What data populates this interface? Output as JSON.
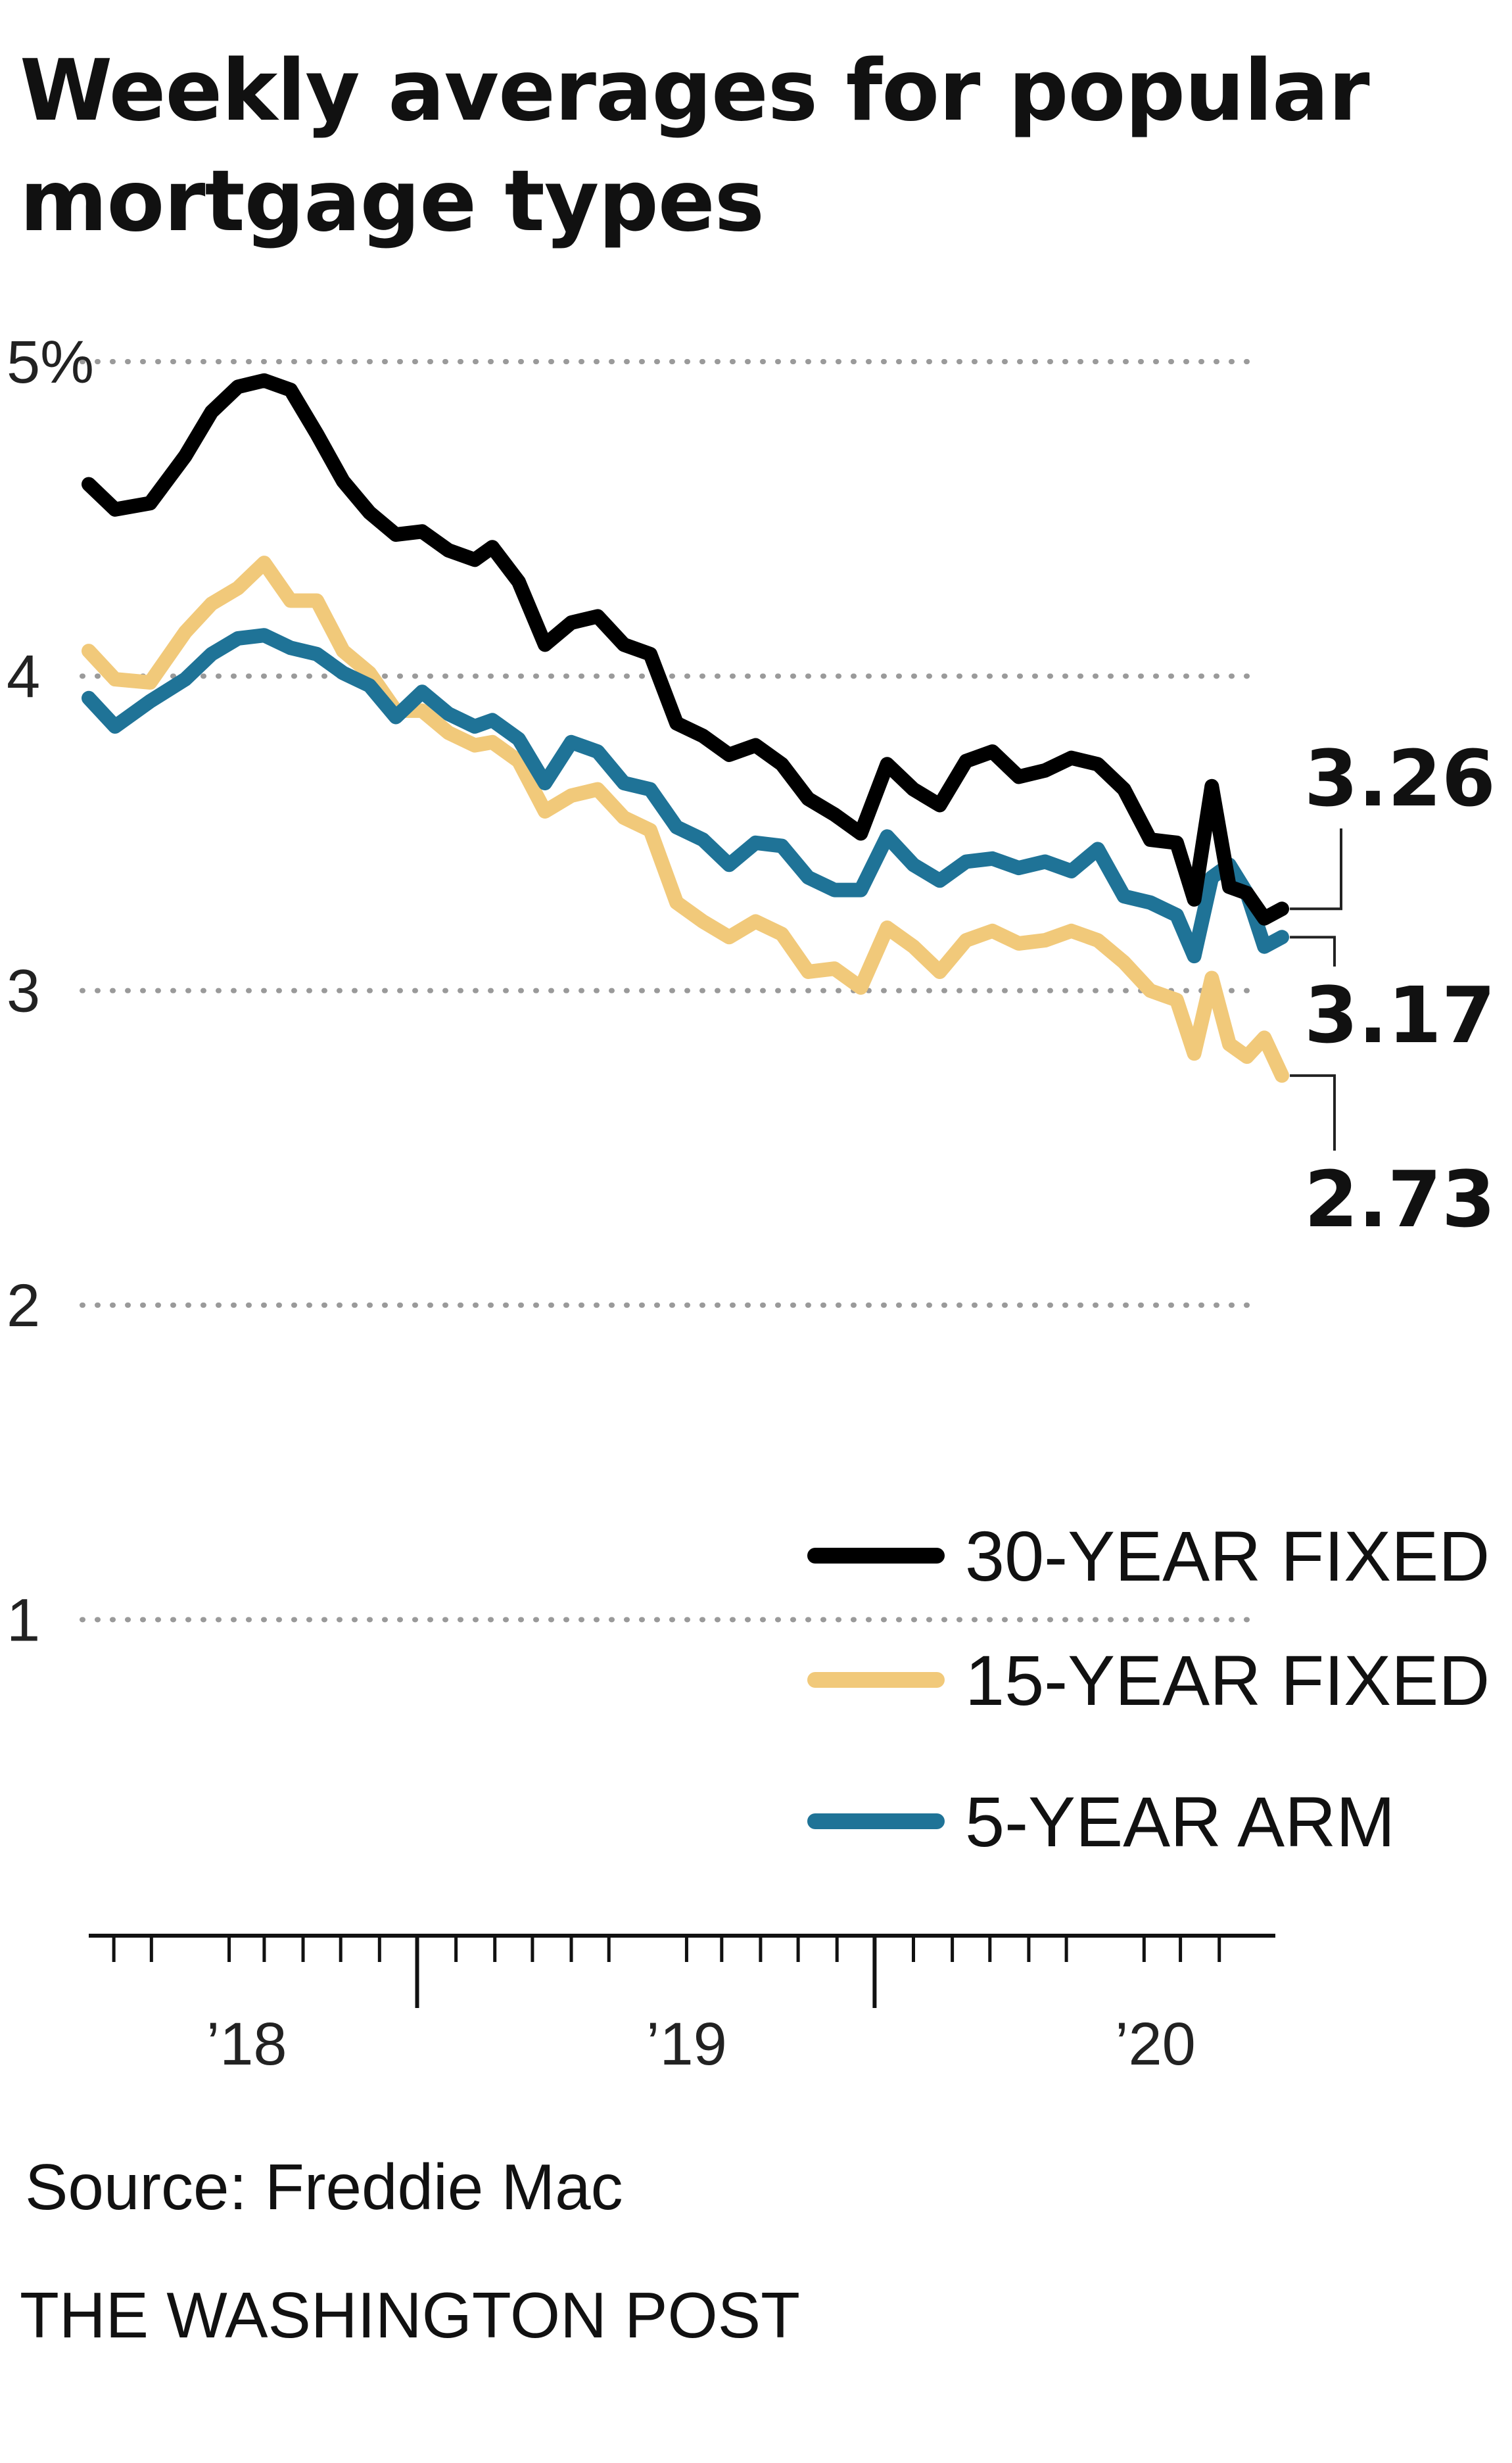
{
  "chart_data": {
    "type": "line",
    "title": "Weekly averages for popular mortgage types",
    "ylabel": "",
    "xlabel": "",
    "ylim": [
      0,
      5
    ],
    "yticks": [
      {
        "value": 5,
        "label": "5%"
      },
      {
        "value": 4,
        "label": "4"
      },
      {
        "value": 3,
        "label": "3"
      },
      {
        "value": 2,
        "label": "2"
      },
      {
        "value": 1,
        "label": "1"
      }
    ],
    "xlim": [
      "2017-10-12",
      "2020-04-30"
    ],
    "xticks": [
      {
        "value": "2018-01-01",
        "label": "’18"
      },
      {
        "value": "2019-01-01",
        "label": "’19"
      },
      {
        "value": "2020-01-01",
        "label": "’20"
      }
    ],
    "grid": true,
    "legend": "bottom-right",
    "series": [
      {
        "name": "30-YEAR FIXED",
        "color": "#000000",
        "end_label": "3.26",
        "points": [
          [
            "2017-10-12",
            4.61
          ],
          [
            "2017-11-02",
            4.53
          ],
          [
            "2017-11-30",
            4.55
          ],
          [
            "2017-12-28",
            4.7
          ],
          [
            "2018-01-18",
            4.84
          ],
          [
            "2018-02-08",
            4.92
          ],
          [
            "2018-03-01",
            4.94
          ],
          [
            "2018-03-22",
            4.91
          ],
          [
            "2018-04-12",
            4.77
          ],
          [
            "2018-05-03",
            4.62
          ],
          [
            "2018-05-24",
            4.52
          ],
          [
            "2018-06-14",
            4.45
          ],
          [
            "2018-07-05",
            4.46
          ],
          [
            "2018-07-26",
            4.4
          ],
          [
            "2018-08-16",
            4.37
          ],
          [
            "2018-08-30",
            4.41
          ],
          [
            "2018-09-20",
            4.3
          ],
          [
            "2018-10-11",
            4.1
          ],
          [
            "2018-11-01",
            4.17
          ],
          [
            "2018-11-22",
            4.19
          ],
          [
            "2018-12-13",
            4.1
          ],
          [
            "2019-01-03",
            4.07
          ],
          [
            "2019-01-24",
            3.85
          ],
          [
            "2019-02-14",
            3.81
          ],
          [
            "2019-03-07",
            3.75
          ],
          [
            "2019-03-28",
            3.78
          ],
          [
            "2019-04-18",
            3.72
          ],
          [
            "2019-05-09",
            3.61
          ],
          [
            "2019-05-30",
            3.56
          ],
          [
            "2019-06-20",
            3.5
          ],
          [
            "2019-07-11",
            3.72
          ],
          [
            "2019-08-01",
            3.64
          ],
          [
            "2019-08-22",
            3.59
          ],
          [
            "2019-09-12",
            3.73
          ],
          [
            "2019-10-03",
            3.76
          ],
          [
            "2019-10-24",
            3.68
          ],
          [
            "2019-11-14",
            3.7
          ],
          [
            "2019-12-05",
            3.74
          ],
          [
            "2019-12-26",
            3.72
          ],
          [
            "2020-01-16",
            3.64
          ],
          [
            "2020-02-06",
            3.48
          ],
          [
            "2020-02-27",
            3.47
          ],
          [
            "2020-03-12",
            3.29
          ],
          [
            "2020-03-26",
            3.65
          ],
          [
            "2020-04-09",
            3.33
          ],
          [
            "2020-04-23",
            3.31
          ],
          [
            "2020-05-07",
            3.23
          ],
          [
            "2020-05-21",
            3.26
          ]
        ]
      },
      {
        "name": "15-YEAR FIXED",
        "color": "#f1c97a",
        "end_label": "2.73",
        "points": [
          [
            "2017-10-12",
            4.08
          ],
          [
            "2017-11-02",
            3.99
          ],
          [
            "2017-11-30",
            3.98
          ],
          [
            "2017-12-28",
            4.14
          ],
          [
            "2018-01-18",
            4.23
          ],
          [
            "2018-02-08",
            4.28
          ],
          [
            "2018-03-01",
            4.36
          ],
          [
            "2018-03-22",
            4.24
          ],
          [
            "2018-04-12",
            4.24
          ],
          [
            "2018-05-03",
            4.08
          ],
          [
            "2018-05-24",
            4.01
          ],
          [
            "2018-06-14",
            3.89
          ],
          [
            "2018-07-05",
            3.89
          ],
          [
            "2018-07-26",
            3.82
          ],
          [
            "2018-08-16",
            3.78
          ],
          [
            "2018-08-30",
            3.79
          ],
          [
            "2018-09-20",
            3.73
          ],
          [
            "2018-10-11",
            3.57
          ],
          [
            "2018-11-01",
            3.62
          ],
          [
            "2018-11-22",
            3.64
          ],
          [
            "2018-12-13",
            3.55
          ],
          [
            "2019-01-03",
            3.51
          ],
          [
            "2019-01-24",
            3.28
          ],
          [
            "2019-02-14",
            3.22
          ],
          [
            "2019-03-07",
            3.17
          ],
          [
            "2019-03-28",
            3.22
          ],
          [
            "2019-04-18",
            3.18
          ],
          [
            "2019-05-09",
            3.06
          ],
          [
            "2019-05-30",
            3.07
          ],
          [
            "2019-06-20",
            3.01
          ],
          [
            "2019-07-11",
            3.2
          ],
          [
            "2019-08-01",
            3.14
          ],
          [
            "2019-08-22",
            3.06
          ],
          [
            "2019-09-12",
            3.16
          ],
          [
            "2019-10-03",
            3.19
          ],
          [
            "2019-10-24",
            3.15
          ],
          [
            "2019-11-14",
            3.16
          ],
          [
            "2019-12-05",
            3.19
          ],
          [
            "2019-12-26",
            3.16
          ],
          [
            "2020-01-16",
            3.09
          ],
          [
            "2020-02-06",
            3.0
          ],
          [
            "2020-02-27",
            2.97
          ],
          [
            "2020-03-12",
            2.8
          ],
          [
            "2020-03-26",
            3.04
          ],
          [
            "2020-04-09",
            2.83
          ],
          [
            "2020-04-23",
            2.79
          ],
          [
            "2020-05-07",
            2.85
          ],
          [
            "2020-05-21",
            2.73
          ]
        ]
      },
      {
        "name": "5-YEAR ARM",
        "color": "#1f7397",
        "end_label": "3.17",
        "points": [
          [
            "2017-10-12",
            3.93
          ],
          [
            "2017-11-02",
            3.84
          ],
          [
            "2017-11-30",
            3.92
          ],
          [
            "2017-12-28",
            3.99
          ],
          [
            "2018-01-18",
            4.07
          ],
          [
            "2018-02-08",
            4.12
          ],
          [
            "2018-03-01",
            4.13
          ],
          [
            "2018-03-22",
            4.09
          ],
          [
            "2018-04-12",
            4.07
          ],
          [
            "2018-05-03",
            4.01
          ],
          [
            "2018-05-24",
            3.97
          ],
          [
            "2018-06-14",
            3.87
          ],
          [
            "2018-07-05",
            3.95
          ],
          [
            "2018-07-26",
            3.88
          ],
          [
            "2018-08-16",
            3.84
          ],
          [
            "2018-08-30",
            3.86
          ],
          [
            "2018-09-20",
            3.8
          ],
          [
            "2018-10-11",
            3.66
          ],
          [
            "2018-11-01",
            3.79
          ],
          [
            "2018-11-22",
            3.76
          ],
          [
            "2018-12-13",
            3.66
          ],
          [
            "2019-01-03",
            3.64
          ],
          [
            "2019-01-24",
            3.52
          ],
          [
            "2019-02-14",
            3.48
          ],
          [
            "2019-03-07",
            3.4
          ],
          [
            "2019-03-28",
            3.47
          ],
          [
            "2019-04-18",
            3.46
          ],
          [
            "2019-05-09",
            3.36
          ],
          [
            "2019-05-30",
            3.32
          ],
          [
            "2019-06-20",
            3.32
          ],
          [
            "2019-07-11",
            3.49
          ],
          [
            "2019-08-01",
            3.4
          ],
          [
            "2019-08-22",
            3.35
          ],
          [
            "2019-09-12",
            3.41
          ],
          [
            "2019-10-03",
            3.42
          ],
          [
            "2019-10-24",
            3.39
          ],
          [
            "2019-11-14",
            3.41
          ],
          [
            "2019-12-05",
            3.38
          ],
          [
            "2019-12-26",
            3.45
          ],
          [
            "2020-01-16",
            3.3
          ],
          [
            "2020-02-06",
            3.28
          ],
          [
            "2020-02-27",
            3.24
          ],
          [
            "2020-03-12",
            3.11
          ],
          [
            "2020-03-26",
            3.36
          ],
          [
            "2020-04-09",
            3.4
          ],
          [
            "2020-04-23",
            3.31
          ],
          [
            "2020-05-07",
            3.14
          ],
          [
            "2020-05-21",
            3.17
          ]
        ]
      }
    ]
  },
  "footer": {
    "source": "Source: Freddie Mac",
    "credit": "THE WASHINGTON POST"
  }
}
